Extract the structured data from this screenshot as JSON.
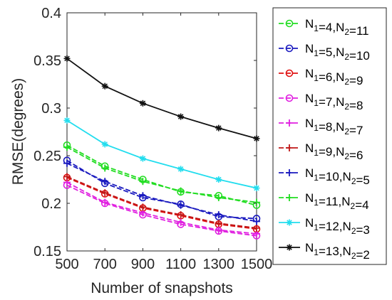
{
  "chart_data": {
    "type": "line",
    "title": "",
    "xlabel": "Number of snapshots",
    "ylabel": "RMSE(degrees)",
    "x": [
      500,
      700,
      900,
      1100,
      1300,
      1500
    ],
    "xticks": [
      "500",
      "700",
      "900",
      "1100",
      "1300",
      "1500"
    ],
    "yticks": [
      "0.15",
      "0.2",
      "0.25",
      "0.3",
      "0.35",
      "0.4"
    ],
    "xlim": [
      500,
      1500
    ],
    "ylim": [
      0.15,
      0.4
    ],
    "grid": false,
    "legend_position": "outside-right",
    "series": [
      {
        "name": "N1=4,N2=11",
        "n1": "4",
        "n2": "11",
        "color": "#22dd22",
        "marker": "circle",
        "values": [
          0.261,
          0.239,
          0.225,
          0.212,
          0.208,
          0.198
        ]
      },
      {
        "name": "N1=5,N2=10",
        "n1": "5",
        "n2": "10",
        "color": "#1a1abf",
        "marker": "circle",
        "values": [
          0.245,
          0.221,
          0.206,
          0.199,
          0.186,
          0.184
        ]
      },
      {
        "name": "N1=6,N2=9",
        "n1": "6",
        "n2": "9",
        "color": "#e01010",
        "marker": "circle",
        "values": [
          0.227,
          0.21,
          0.195,
          0.187,
          0.178,
          0.173
        ]
      },
      {
        "name": "N1=7,N2=8",
        "n1": "7",
        "n2": "8",
        "color": "#e020e0",
        "marker": "circle",
        "values": [
          0.219,
          0.2,
          0.188,
          0.178,
          0.171,
          0.166
        ]
      },
      {
        "name": "N1=8,N2=7",
        "n1": "8",
        "n2": "7",
        "color": "#e020e0",
        "marker": "plus",
        "values": [
          0.222,
          0.201,
          0.19,
          0.18,
          0.172,
          0.168
        ]
      },
      {
        "name": "N1=9,N2=6",
        "n1": "9",
        "n2": "6",
        "color": "#c01818",
        "marker": "plus",
        "values": [
          0.228,
          0.211,
          0.196,
          0.188,
          0.179,
          0.174
        ]
      },
      {
        "name": "N1=10,N2=5",
        "n1": "10",
        "n2": "5",
        "color": "#1a1abf",
        "marker": "plus",
        "values": [
          0.242,
          0.223,
          0.208,
          0.198,
          0.188,
          0.181
        ]
      },
      {
        "name": "N1=11,N2=4",
        "n1": "11",
        "n2": "4",
        "color": "#22dd22",
        "marker": "plus",
        "values": [
          0.259,
          0.237,
          0.223,
          0.213,
          0.206,
          0.201
        ]
      },
      {
        "name": "N1=12,N2=3",
        "n1": "12",
        "n2": "3",
        "color": "#22ddee",
        "marker": "star",
        "values": [
          0.287,
          0.262,
          0.247,
          0.236,
          0.225,
          0.216
        ]
      },
      {
        "name": "N1=13,N2=2",
        "n1": "13",
        "n2": "2",
        "color": "#111111",
        "marker": "star",
        "values": [
          0.352,
          0.323,
          0.305,
          0.291,
          0.279,
          0.268
        ]
      }
    ]
  }
}
